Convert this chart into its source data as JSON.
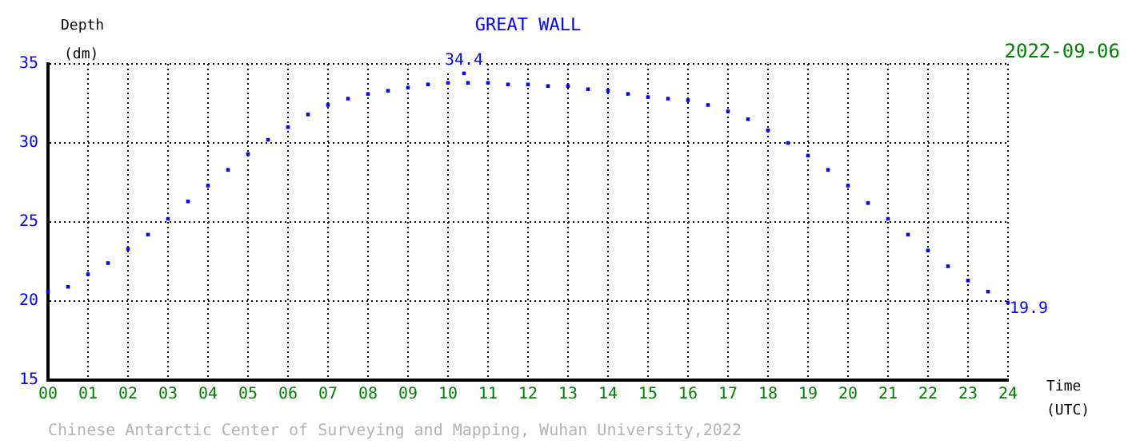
{
  "chart_data": {
    "type": "scatter",
    "title": "GREAT WALL",
    "subtitle": "2022-09-06",
    "xlabel": "Time (UTC)",
    "ylabel": "Depth (dm)",
    "x": [
      0,
      0.5,
      1,
      1.5,
      2,
      2.5,
      3,
      3.5,
      4,
      4.5,
      5,
      5.5,
      6,
      6.5,
      7,
      7.5,
      8,
      8.5,
      9,
      9.5,
      10,
      10.4,
      10.5,
      11,
      11.5,
      12,
      12.5,
      13,
      13.5,
      14,
      14.5,
      15,
      15.5,
      16,
      16.5,
      17,
      17.5,
      18,
      18.5,
      19,
      19.5,
      20,
      20.5,
      21,
      21.5,
      22,
      22.5,
      23,
      23.5,
      24
    ],
    "series": [
      {
        "color": "#0000ff",
        "values": [
          20.6,
          20.9,
          21.7,
          22.4,
          23.3,
          24.2,
          25.2,
          26.3,
          27.3,
          28.3,
          29.3,
          30.2,
          31.0,
          31.8,
          32.4,
          32.8,
          33.1,
          33.3,
          33.5,
          33.7,
          33.8,
          34.4,
          33.8,
          33.8,
          33.7,
          33.7,
          33.6,
          33.6,
          33.4,
          33.3,
          33.1,
          32.9,
          32.8,
          32.7,
          32.4,
          32.0,
          31.5,
          30.8,
          30.0,
          29.2,
          28.3,
          27.3,
          26.2,
          25.2,
          24.2,
          23.2,
          22.2,
          21.3,
          20.6,
          19.9
        ]
      }
    ],
    "xlim": [
      0,
      24
    ],
    "xticks": [
      {
        "value": 0,
        "label": "00"
      },
      {
        "value": 1,
        "label": "01"
      },
      {
        "value": 2,
        "label": "02"
      },
      {
        "value": 3,
        "label": "03"
      },
      {
        "value": 4,
        "label": "04"
      },
      {
        "value": 5,
        "label": "05"
      },
      {
        "value": 6,
        "label": "06"
      },
      {
        "value": 7,
        "label": "07"
      },
      {
        "value": 8,
        "label": "08"
      },
      {
        "value": 9,
        "label": "09"
      },
      10,
      11,
      12,
      13,
      14,
      15,
      16,
      17,
      18,
      19,
      20,
      21,
      22,
      23,
      24
    ],
    "ylim": [
      15,
      35
    ],
    "yticks": [
      15,
      20,
      25,
      30,
      35
    ],
    "grid": true,
    "marker": "square",
    "legend": false,
    "annotations": [
      {
        "text": "34.4",
        "x": 10.4,
        "y": 34.4
      },
      {
        "text": "19.9",
        "x": 24,
        "y": 19.9
      },
      "Chinese Antarctic Center of Surveying and Mapping, Wuhan University,2022"
    ]
  }
}
